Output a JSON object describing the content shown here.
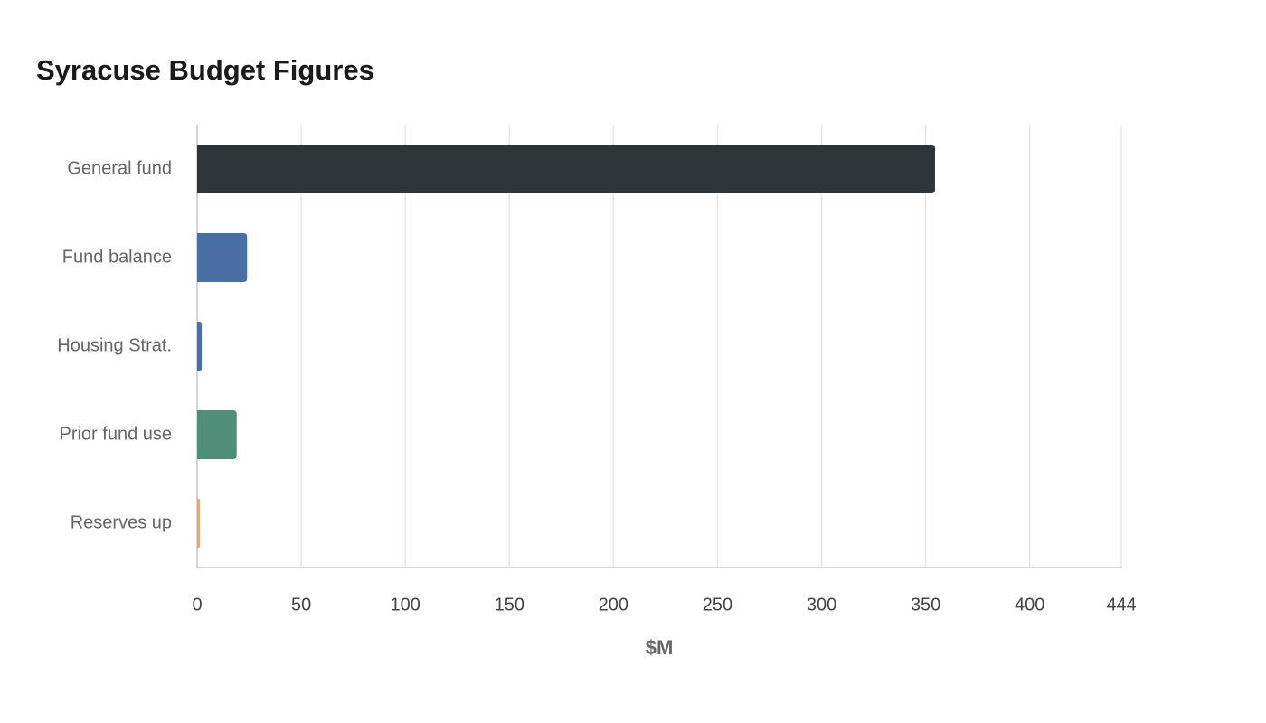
{
  "chart_data": {
    "type": "hbar",
    "title": "Syracuse Budget Figures",
    "x_label": "$M",
    "categories": [
      "General fund",
      "Fund balance",
      "Housing Strat.",
      "Prior fund use",
      "Reserves up"
    ],
    "values": [
      354.5,
      24,
      2.2,
      19,
      1.3
    ],
    "colors": [
      "#2e3438",
      "#4a6fa5",
      "#4a6fa5",
      "#4f8f7a",
      "#e0a77a"
    ],
    "xlim": [
      0,
      444
    ],
    "xticks": [
      0,
      50,
      100,
      150,
      200,
      250,
      300,
      350,
      400,
      444
    ],
    "grid": true
  }
}
